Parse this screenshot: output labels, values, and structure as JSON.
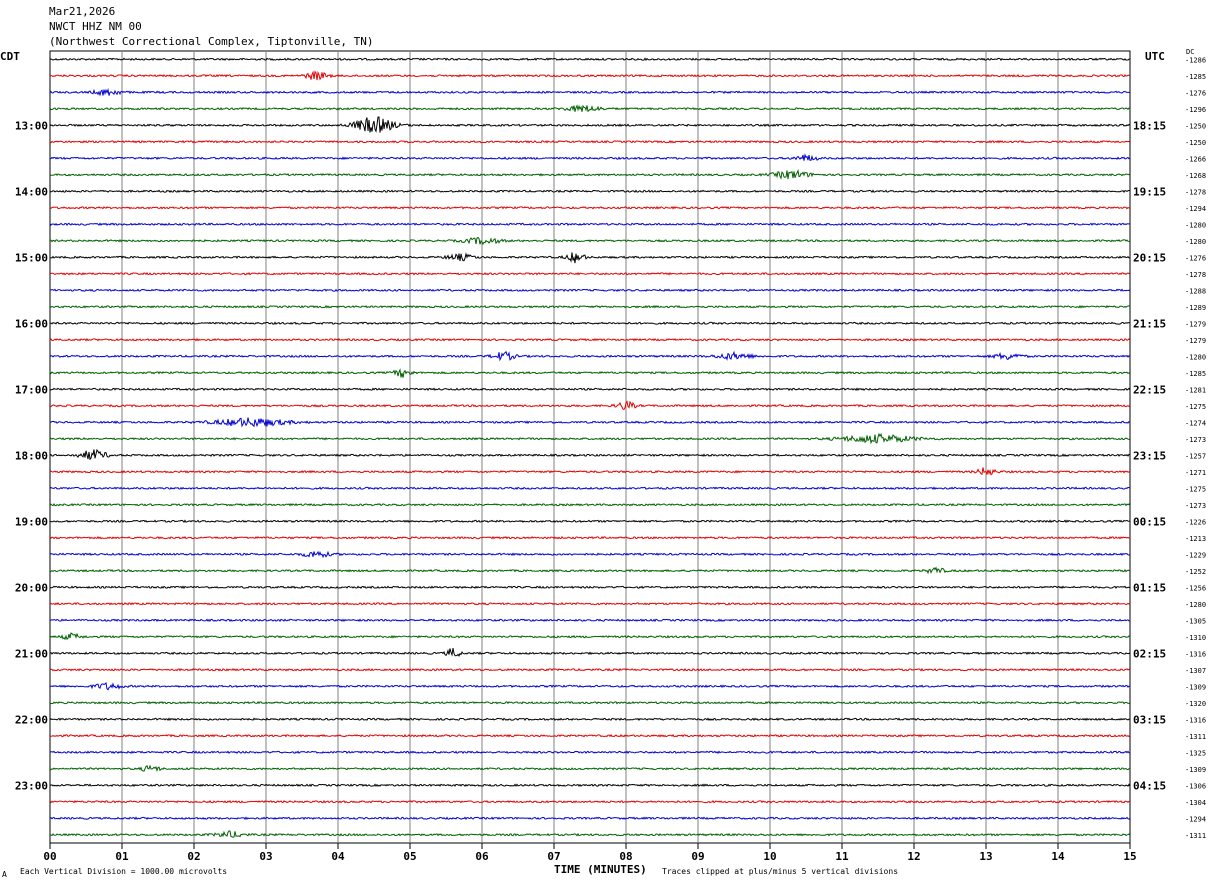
{
  "header": {
    "date": "Mar21,2026",
    "station": "NWCT HHZ NM 00",
    "location": "(Northwest Correctional Complex, Tiptonville, TN)"
  },
  "left_axis_label": "CDT",
  "right_axis_label": "UTC",
  "dc_label": "DC",
  "footer": {
    "scale_note": "Each Vertical Division = 1000.00 microvolts",
    "clip_note": "Traces clipped at plus/minus 5 vertical divisions",
    "mark": "A"
  },
  "colors": {
    "trace_cycle": [
      "#000000",
      "#e00000",
      "#0000d0",
      "#006000"
    ],
    "grid": "#808080"
  },
  "chart_data": {
    "type": "line",
    "title": "",
    "xlabel": "TIME (MINUTES)",
    "xlim": [
      0,
      15
    ],
    "x_ticks": [
      "00",
      "01",
      "02",
      "03",
      "04",
      "05",
      "06",
      "07",
      "08",
      "09",
      "10",
      "11",
      "12",
      "13",
      "14",
      "15"
    ],
    "cdt_hour_labels": [
      "13:00",
      "14:00",
      "15:00",
      "16:00",
      "17:00",
      "18:00",
      "19:00",
      "20:00",
      "21:00",
      "22:00",
      "23:00"
    ],
    "utc_hour_labels": [
      "18:15",
      "19:15",
      "20:15",
      "21:15",
      "22:15",
      "23:15",
      "00:15",
      "01:15",
      "02:15",
      "03:15",
      "04:15"
    ],
    "hour_label_first_row": 4,
    "rows_per_hour": 4,
    "dc_offsets": [
      -1286,
      -1285,
      -1276,
      -1296,
      -1250,
      -1250,
      -1266,
      -1268,
      -1278,
      -1294,
      -1280,
      -1280,
      -1276,
      -1278,
      -1288,
      -1289,
      -1279,
      -1279,
      -1280,
      -1285,
      -1281,
      -1275,
      -1274,
      -1273,
      -1257,
      -1271,
      -1275,
      -1273,
      -1226,
      -1213,
      -1229,
      -1252,
      -1256,
      -1280,
      -1305,
      -1310,
      -1316,
      -1307,
      -1309,
      -1320,
      -1316,
      -1311,
      -1325,
      -1309,
      -1306,
      -1304,
      -1294,
      -1311
    ],
    "bursts": [
      {
        "row": 1,
        "minute": 3.7,
        "amplitude": 4,
        "width": 0.25
      },
      {
        "row": 2,
        "minute": 0.8,
        "amplitude": 3,
        "width": 0.3
      },
      {
        "row": 3,
        "minute": 7.4,
        "amplitude": 3,
        "width": 0.4
      },
      {
        "row": 4,
        "minute": 4.5,
        "amplitude": 8,
        "width": 0.45
      },
      {
        "row": 6,
        "minute": 10.5,
        "amplitude": 3,
        "width": 0.25
      },
      {
        "row": 7,
        "minute": 10.3,
        "amplitude": 4,
        "width": 0.4
      },
      {
        "row": 11,
        "minute": 6.0,
        "amplitude": 3,
        "width": 0.4
      },
      {
        "row": 12,
        "minute": 7.3,
        "amplitude": 5,
        "width": 0.2
      },
      {
        "row": 12,
        "minute": 5.7,
        "amplitude": 3,
        "width": 0.3
      },
      {
        "row": 18,
        "minute": 6.3,
        "amplitude": 4,
        "width": 0.25
      },
      {
        "row": 18,
        "minute": 9.5,
        "amplitude": 3,
        "width": 0.4
      },
      {
        "row": 18,
        "minute": 13.3,
        "amplitude": 3,
        "width": 0.3
      },
      {
        "row": 19,
        "minute": 4.9,
        "amplitude": 4,
        "width": 0.2
      },
      {
        "row": 21,
        "minute": 8.0,
        "amplitude": 4,
        "width": 0.2
      },
      {
        "row": 22,
        "minute": 2.8,
        "amplitude": 4,
        "width": 0.8
      },
      {
        "row": 23,
        "minute": 11.5,
        "amplitude": 4,
        "width": 0.8
      },
      {
        "row": 24,
        "minute": 0.6,
        "amplitude": 5,
        "width": 0.3
      },
      {
        "row": 25,
        "minute": 13.0,
        "amplitude": 4,
        "width": 0.2
      },
      {
        "row": 30,
        "minute": 3.7,
        "amplitude": 3,
        "width": 0.3
      },
      {
        "row": 31,
        "minute": 12.3,
        "amplitude": 3,
        "width": 0.2
      },
      {
        "row": 35,
        "minute": 0.3,
        "amplitude": 3,
        "width": 0.2
      },
      {
        "row": 36,
        "minute": 5.6,
        "amplitude": 5,
        "width": 0.15
      },
      {
        "row": 38,
        "minute": 0.8,
        "amplitude": 3,
        "width": 0.3
      },
      {
        "row": 43,
        "minute": 1.4,
        "amplitude": 3,
        "width": 0.2
      },
      {
        "row": 47,
        "minute": 2.5,
        "amplitude": 3,
        "width": 0.3
      }
    ]
  }
}
